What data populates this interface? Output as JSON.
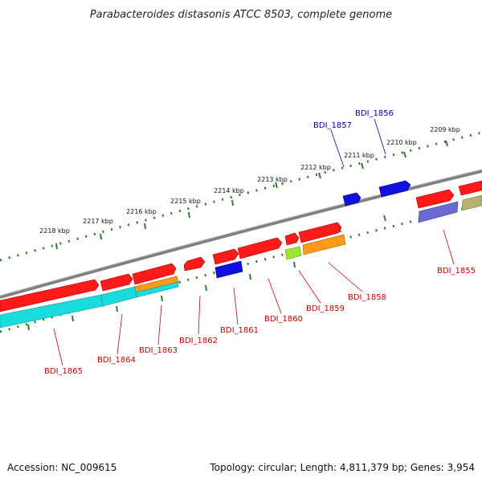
{
  "title": "Parabacteroides distasonis ATCC 8503, complete genome",
  "footer": {
    "accession": "Accession: NC_009615",
    "summary": "Topology: circular; Length: 4,811,379 bp; Genes: 3,954"
  },
  "scale_ticks": [
    "2209 kbp",
    "2210 kbp",
    "2211 kbp",
    "2212 kbp",
    "2213 kbp",
    "2214 kbp",
    "2215 kbp",
    "2216 kbp",
    "2217 kbp",
    "2218 kbp"
  ],
  "gene_labels": {
    "bdi_1855": "BDI_1855",
    "bdi_1856": "BDI_1856",
    "bdi_1857": "BDI_1857",
    "bdi_1858": "BDI_1858",
    "bdi_1859": "BDI_1859",
    "bdi_1860": "BDI_1860",
    "bdi_1861": "BDI_1861",
    "bdi_1862": "BDI_1862",
    "bdi_1863": "BDI_1863",
    "bdi_1864": "BDI_1864",
    "bdi_1865": "BDI_1865"
  },
  "colors": {
    "backbone": "#808080",
    "tick": "#2e7d2e",
    "red_gene": "#ff1a1a",
    "blue_gene": "#1010e0",
    "orange_gene": "#ff9a1a",
    "lime_gene": "#9ee632",
    "cyan_gene": "#1adcdc",
    "slate_gene": "#6a6ad0",
    "olive_gene": "#b8b070",
    "red_label": "#cc0000",
    "blue_label": "#0000aa"
  }
}
